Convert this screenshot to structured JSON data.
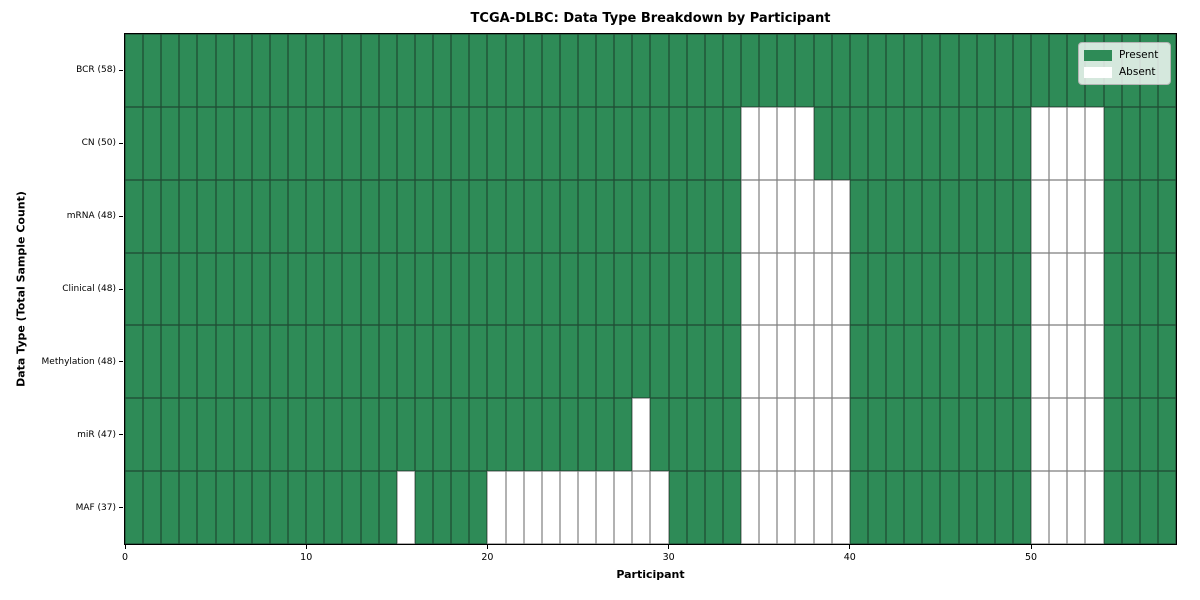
{
  "chart_data": {
    "type": "heatmap",
    "title": "TCGA-DLBC: Data Type Breakdown by Participant",
    "xlabel": "Participant",
    "ylabel": "Data Type (Total Sample Count)",
    "n_participants": 58,
    "xlim": [
      0,
      58
    ],
    "x_ticks": [
      0,
      10,
      20,
      30,
      40,
      50
    ],
    "grid": "cell-edges",
    "legend_position": "upper-right-inside",
    "colors": {
      "present": "#2E8B57",
      "absent": "#ffffff",
      "cell_edge": "rgba(20,20,20,0.55)"
    },
    "legend": [
      {
        "label": "Present",
        "color": "#2E8B57"
      },
      {
        "label": "Absent",
        "color": "#ffffff"
      }
    ],
    "rows": [
      {
        "label": "BCR (58)",
        "total_samples": 58,
        "absent_participants": []
      },
      {
        "label": "CN (50)",
        "total_samples": 50,
        "absent_participants": [
          34,
          35,
          36,
          37,
          50,
          51,
          52,
          53
        ]
      },
      {
        "label": "mRNA (48)",
        "total_samples": 48,
        "absent_participants": [
          34,
          35,
          36,
          37,
          38,
          39,
          50,
          51,
          52,
          53
        ]
      },
      {
        "label": "Clinical (48)",
        "total_samples": 48,
        "absent_participants": [
          34,
          35,
          36,
          37,
          38,
          39,
          50,
          51,
          52,
          53
        ]
      },
      {
        "label": "Methylation (48)",
        "total_samples": 48,
        "absent_participants": [
          34,
          35,
          36,
          37,
          38,
          39,
          50,
          51,
          52,
          53
        ]
      },
      {
        "label": "miR (47)",
        "total_samples": 47,
        "absent_participants": [
          28,
          34,
          35,
          36,
          37,
          38,
          39,
          50,
          51,
          52,
          53
        ]
      },
      {
        "label": "MAF (37)",
        "total_samples": 37,
        "absent_participants": [
          15,
          20,
          21,
          22,
          23,
          24,
          25,
          26,
          27,
          28,
          29,
          34,
          35,
          36,
          37,
          38,
          39,
          50,
          51,
          52,
          53
        ]
      }
    ]
  }
}
